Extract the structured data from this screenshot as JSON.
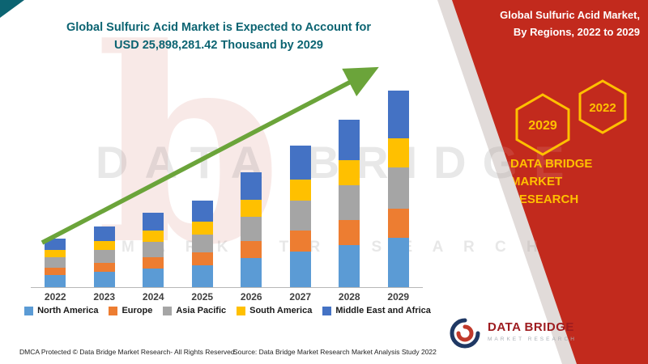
{
  "chart_title": {
    "line1": "Global Sulfuric Acid Market is Expected to Account for",
    "line2": "USD 25,898,281.42 Thousand by 2029"
  },
  "ribbon": {
    "heading_line1": "Global Sulfuric Acid Market,",
    "heading_line2": "By Regions, 2022 to 2029",
    "hex_left": "2029",
    "hex_right": "2022",
    "brand_line1": "DATA BRIDGE MARKET",
    "brand_line2": "RESEARCH",
    "background_color": "#c22a1d",
    "accent_color": "#ffc000"
  },
  "logo": {
    "title": "DATA BRIDGE",
    "subtitle": "MARKET RESEARCH"
  },
  "watermark": {
    "letter": "b",
    "line1": "DATA BRIDGE",
    "line2": "M A R K E T   R E S E A R C H"
  },
  "footer": {
    "dmca": "DMCA Protected © Data Bridge Market Research- All Rights Reserved.",
    "source": "Source: Data Bridge Market Research Market Analysis Study 2022"
  },
  "chart_data": {
    "type": "bar",
    "stacked": true,
    "title": "Global Sulfuric Acid Market is Expected to Account for USD 25,898,281.42 Thousand by 2029",
    "xlabel": "",
    "ylabel": "",
    "axis_values_shown": false,
    "units": "relative (no value axis shown in image)",
    "legend_position": "bottom",
    "grid": false,
    "trend_arrow": true,
    "trend_arrow_color": "#6ba43a",
    "categories": [
      "2022",
      "2023",
      "2024",
      "2025",
      "2026",
      "2027",
      "2028",
      "2029"
    ],
    "series": [
      {
        "name": "North America",
        "color": "#5B9BD5",
        "values": [
          15,
          19,
          23,
          27,
          36,
          44,
          52,
          61
        ]
      },
      {
        "name": "Europe",
        "color": "#ED7D31",
        "values": [
          9,
          11,
          14,
          16,
          21,
          26,
          31,
          36
        ]
      },
      {
        "name": "Asia Pacific",
        "color": "#A5A5A5",
        "values": [
          13,
          16,
          19,
          22,
          30,
          37,
          43,
          51
        ]
      },
      {
        "name": "South America",
        "color": "#FFC000",
        "values": [
          9,
          11,
          14,
          16,
          21,
          26,
          31,
          36
        ]
      },
      {
        "name": "Middle East and Africa",
        "color": "#4472C4",
        "values": [
          14,
          18,
          22,
          26,
          34,
          42,
          50,
          59
        ]
      }
    ],
    "totals": [
      60,
      75,
      92,
      107,
      142,
      175,
      207,
      243
    ]
  }
}
